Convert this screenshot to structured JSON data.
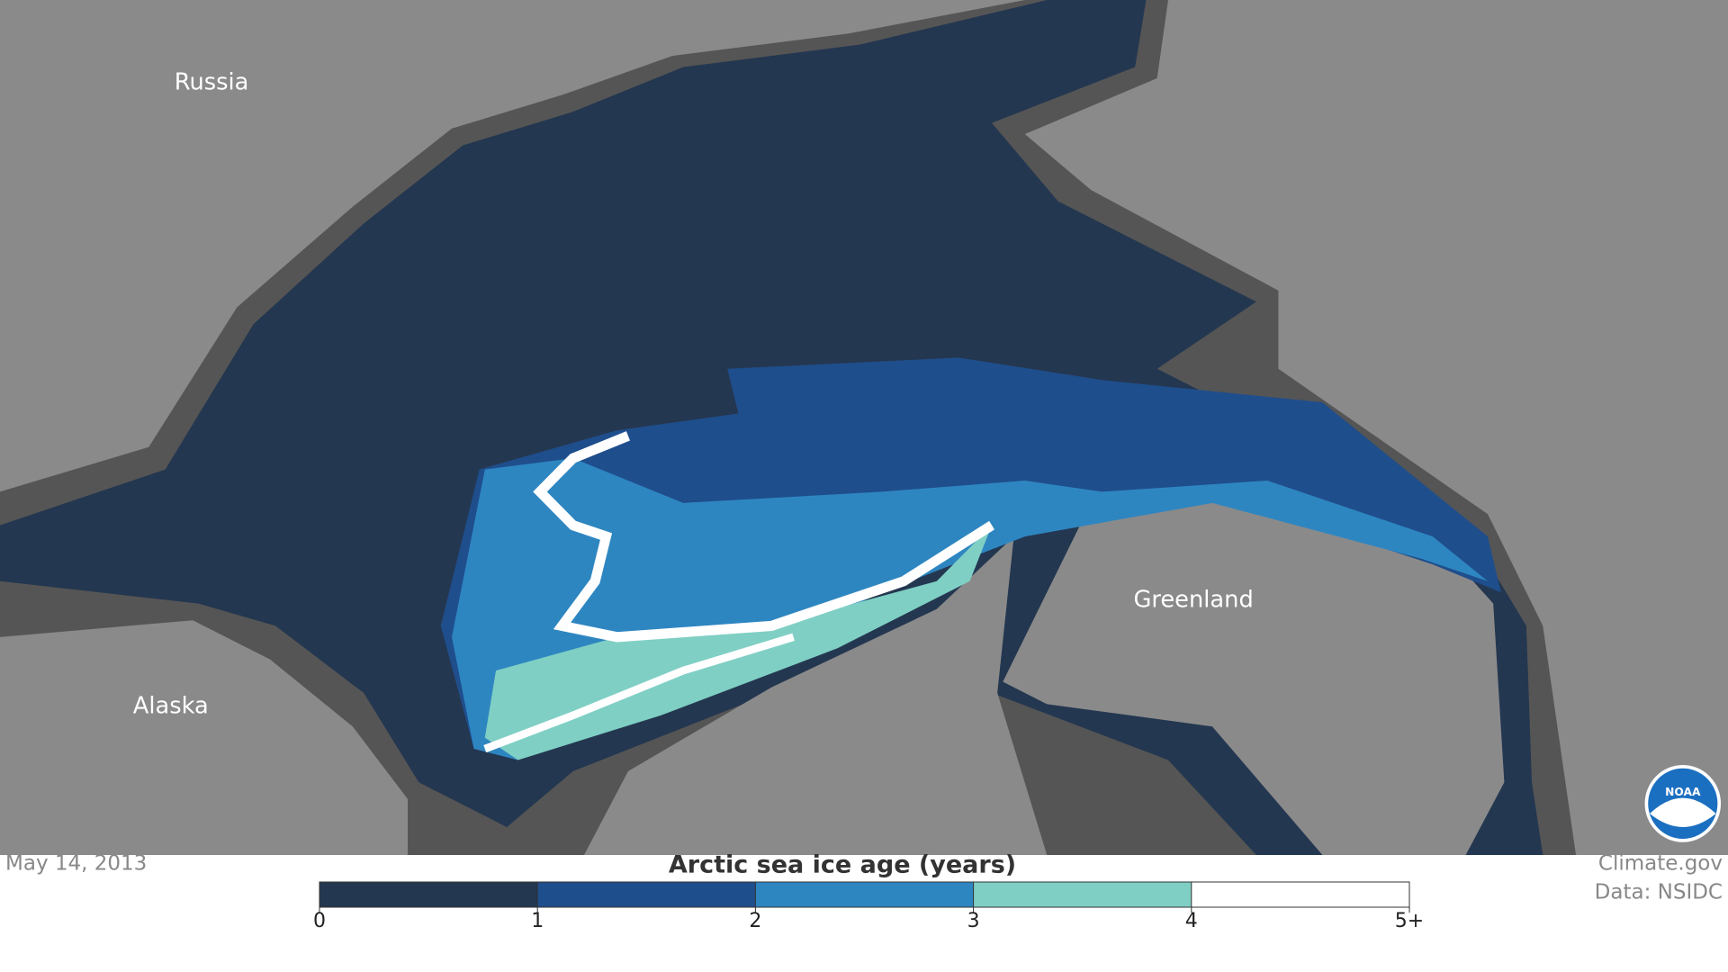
{
  "map": {
    "labels": [
      "Russia",
      "Alaska",
      "Greenland"
    ],
    "date": "May 14, 2013",
    "credit": "Climate.gov",
    "source": "Data: NSIDC",
    "logo": "NOAA"
  },
  "legend": {
    "title": "Arctic sea ice age (years)",
    "colors": [
      "#243750",
      "#1f4e8c",
      "#2e86c1",
      "#7fcfc4",
      "#ffffff"
    ],
    "ticks": [
      0,
      1,
      2,
      3,
      4,
      {
        "value": 5,
        "label": "5+"
      }
    ]
  }
}
